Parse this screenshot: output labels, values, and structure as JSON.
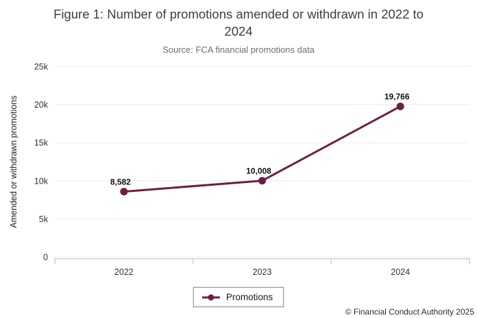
{
  "chart_data": {
    "type": "line",
    "title": "Figure 1: Number of promotions amended or withdrawn in 2022 to 2024",
    "subtitle": "Source: FCA financial promotions data",
    "ylabel": "Amended or withdrawn promotions",
    "categories": [
      "2022",
      "2023",
      "2024"
    ],
    "series": [
      {
        "name": "Promotions",
        "values": [
          8582,
          10008,
          19766
        ]
      }
    ],
    "data_labels": [
      "8,582",
      "10,008",
      "19,766"
    ],
    "y_ticks": [
      {
        "label": "0",
        "value": 0
      },
      {
        "label": "5k",
        "value": 5000
      },
      {
        "label": "10k",
        "value": 10000
      },
      {
        "label": "15k",
        "value": 15000
      },
      {
        "label": "20k",
        "value": 20000
      },
      {
        "label": "25k",
        "value": 25000
      }
    ],
    "ylim": [
      0,
      25000
    ],
    "grid": true,
    "legend_position": "bottom",
    "colors": {
      "line": "#6f1d45",
      "gridline": "#ebebeb",
      "axis": "#c9cfda",
      "tick_text": "#333333",
      "data_label_text": "#111111"
    }
  },
  "legend": {
    "label": "Promotions"
  },
  "footer": {
    "copyright": "© Financial Conduct Authority 2025"
  }
}
